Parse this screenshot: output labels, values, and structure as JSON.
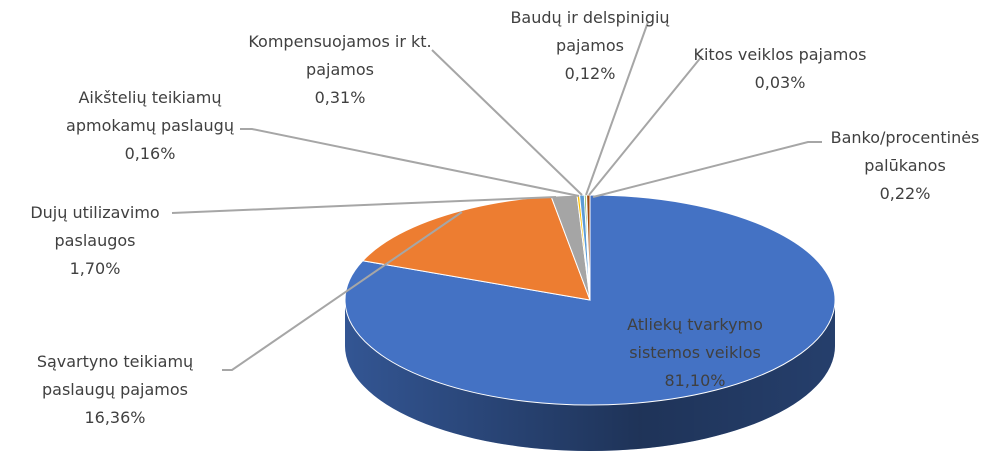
{
  "chart_data": {
    "type": "pie3d",
    "categories": [
      "Atliekų tvarkymo sistemos veiklos",
      "Sąvartyno teikiamų paslaugų pajamos",
      "Dujų utilizavimo paslaugos",
      "Aikštelių teikiamų apmokamų paslaugų",
      "Kompensuojamos ir kt. pajamos",
      "Baudų ir delspinigių pajamos",
      "Kitos veiklos pajamos",
      "Banko/procentinės palūkanos"
    ],
    "values": [
      81.1,
      16.36,
      1.7,
      0.16,
      0.31,
      0.12,
      0.03,
      0.22
    ],
    "value_labels": [
      "81,10%",
      "16,36%",
      "1,70%",
      "0,16%",
      "0,31%",
      "0,12%",
      "0,03%",
      "0,22%"
    ],
    "colors": [
      "#4472c4",
      "#ed7d31",
      "#a5a5a5",
      "#ffc000",
      "#5b9bd5",
      "#70ad47",
      "#264478",
      "#9e480e"
    ]
  }
}
